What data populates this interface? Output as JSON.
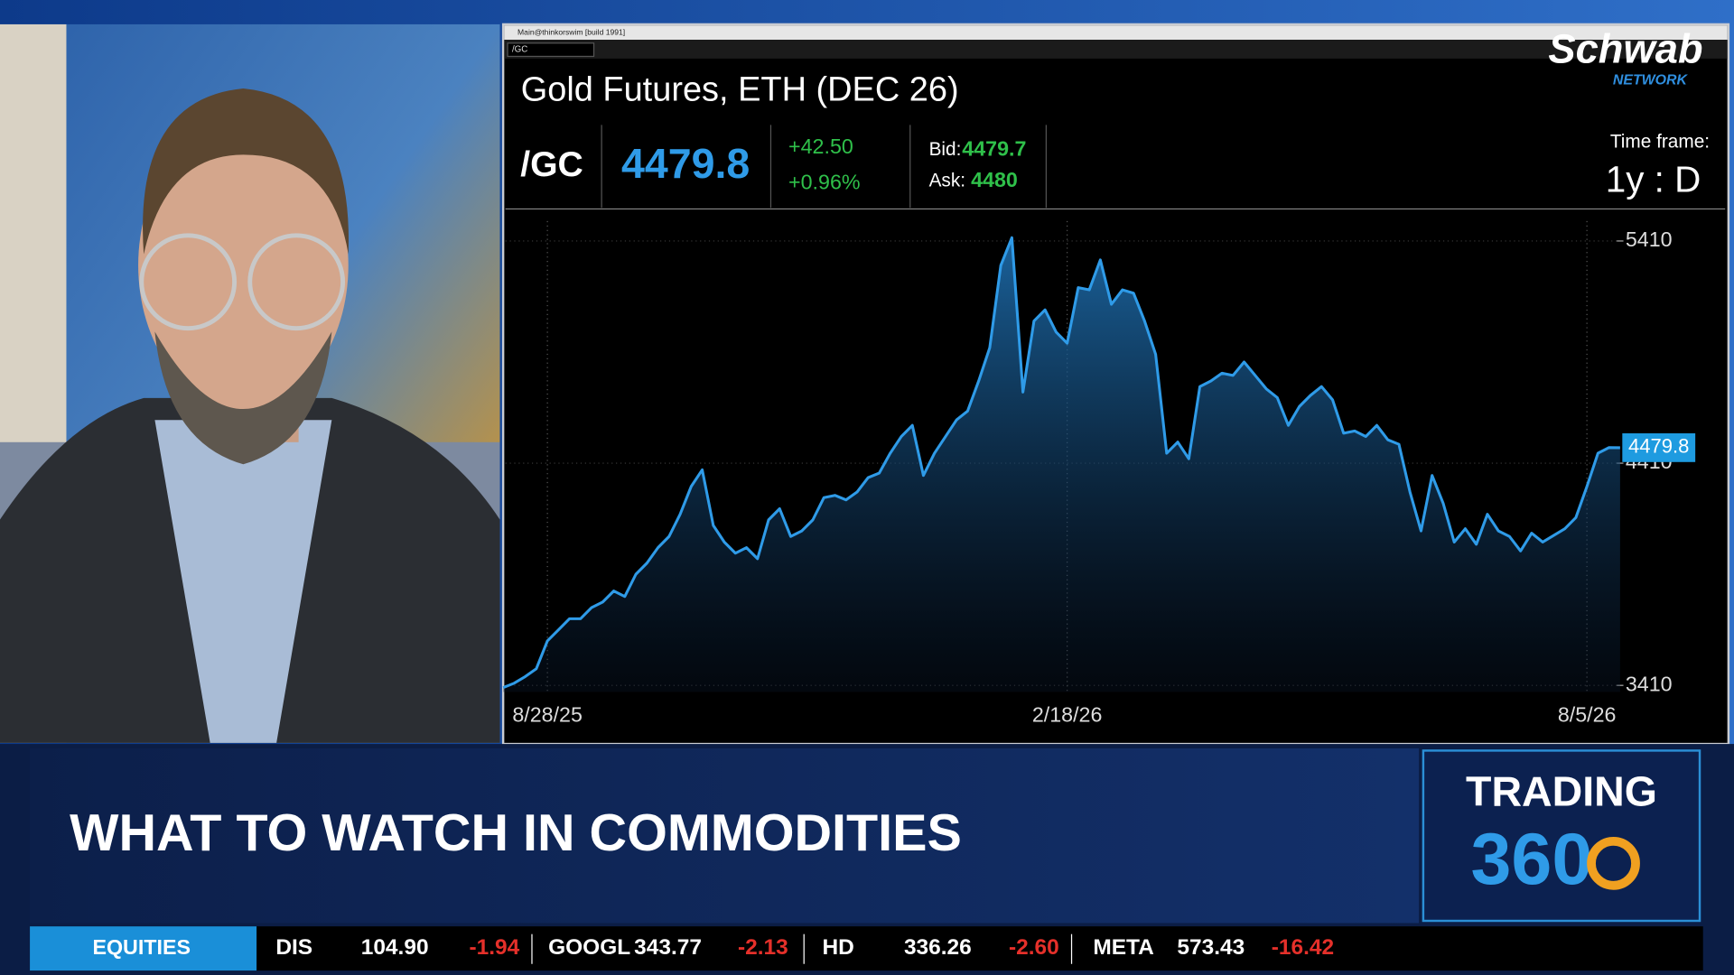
{
  "window": {
    "title": "Main@thinkorswim [build 1991]"
  },
  "quote": {
    "title": "Gold Futures, ETH (DEC 26)",
    "symbol": "/GC",
    "change": "+42.50",
    "change_pct": "+0.96%",
    "bid_label": "Bid:",
    "bid": "4479.7",
    "ask_label": "Ask:",
    "ask": "4480",
    "timeframe_label": "Time frame:",
    "timeframe": "1y : D"
  },
  "brand": {
    "name": "Schwab",
    "sub": "NETWORK"
  },
  "lower_third": {
    "headline": "WHAT TO WATCH IN COMMODITIES",
    "show": "TRADING",
    "show_number": "360"
  },
  "ticker": {
    "label": "EQUITIES",
    "items": [
      {
        "symbol": "DIS",
        "price": "104.90",
        "change": "-1.94"
      },
      {
        "symbol": "GOOGL",
        "price": "343.77",
        "change": "-2.13"
      },
      {
        "symbol": "HD",
        "price": "336.26",
        "change": "-2.60"
      },
      {
        "symbol": "META",
        "price": "573.43",
        "change": "-16.42"
      }
    ]
  },
  "chart_data": {
    "type": "area",
    "color": "#2f9be8",
    "grid": true,
    "categories": [
      null,
      null,
      null,
      null,
      "8/28/25",
      null,
      null,
      null,
      null,
      null,
      null,
      null,
      null,
      null,
      null,
      null,
      null,
      null,
      null,
      null,
      null,
      null,
      null,
      null,
      null,
      null,
      null,
      null,
      null,
      null,
      null,
      null,
      null,
      null,
      null,
      null,
      null,
      null,
      null,
      null,
      null,
      null,
      null,
      null,
      null,
      null,
      null,
      null,
      null,
      null,
      null,
      "2/18/26",
      null,
      null,
      null,
      null,
      null,
      null,
      null,
      null,
      null,
      null,
      null,
      null,
      null,
      null,
      null,
      null,
      null,
      null,
      null,
      null,
      null,
      null,
      null,
      null,
      null,
      null,
      null,
      null,
      null,
      null,
      null,
      null,
      null,
      null,
      null,
      null,
      null,
      null,
      null,
      null,
      null,
      null,
      null,
      null,
      null,
      null,
      "8/5/26",
      null,
      null,
      null
    ],
    "values": [
      3400,
      3420,
      3450,
      3485,
      3610,
      3660,
      3710,
      3710,
      3760,
      3785,
      3835,
      3810,
      3910,
      3960,
      4030,
      4080,
      4180,
      4305,
      4380,
      4130,
      4055,
      4005,
      4030,
      3980,
      4155,
      4205,
      4080,
      4105,
      4155,
      4255,
      4265,
      4245,
      4280,
      4345,
      4365,
      4455,
      4530,
      4580,
      4355,
      4455,
      4530,
      4605,
      4645,
      4780,
      4930,
      5300,
      5425,
      4730,
      5050,
      5100,
      5000,
      4950,
      5200,
      5190,
      5325,
      5125,
      5190,
      5175,
      5050,
      4900,
      4455,
      4505,
      4430,
      4755,
      4780,
      4815,
      4805,
      4865,
      4805,
      4745,
      4705,
      4580,
      4665,
      4715,
      4755,
      4695,
      4545,
      4555,
      4530,
      4580,
      4515,
      4495,
      4280,
      4105,
      4355,
      4230,
      4055,
      4115,
      4045,
      4180,
      4105,
      4080,
      4015,
      4095,
      4055,
      4085,
      4115,
      4165,
      4305,
      4455,
      4480,
      4479.8
    ],
    "ylim": [
      3410,
      5410
    ],
    "yticks": [
      3410,
      4410,
      5410
    ]
  }
}
